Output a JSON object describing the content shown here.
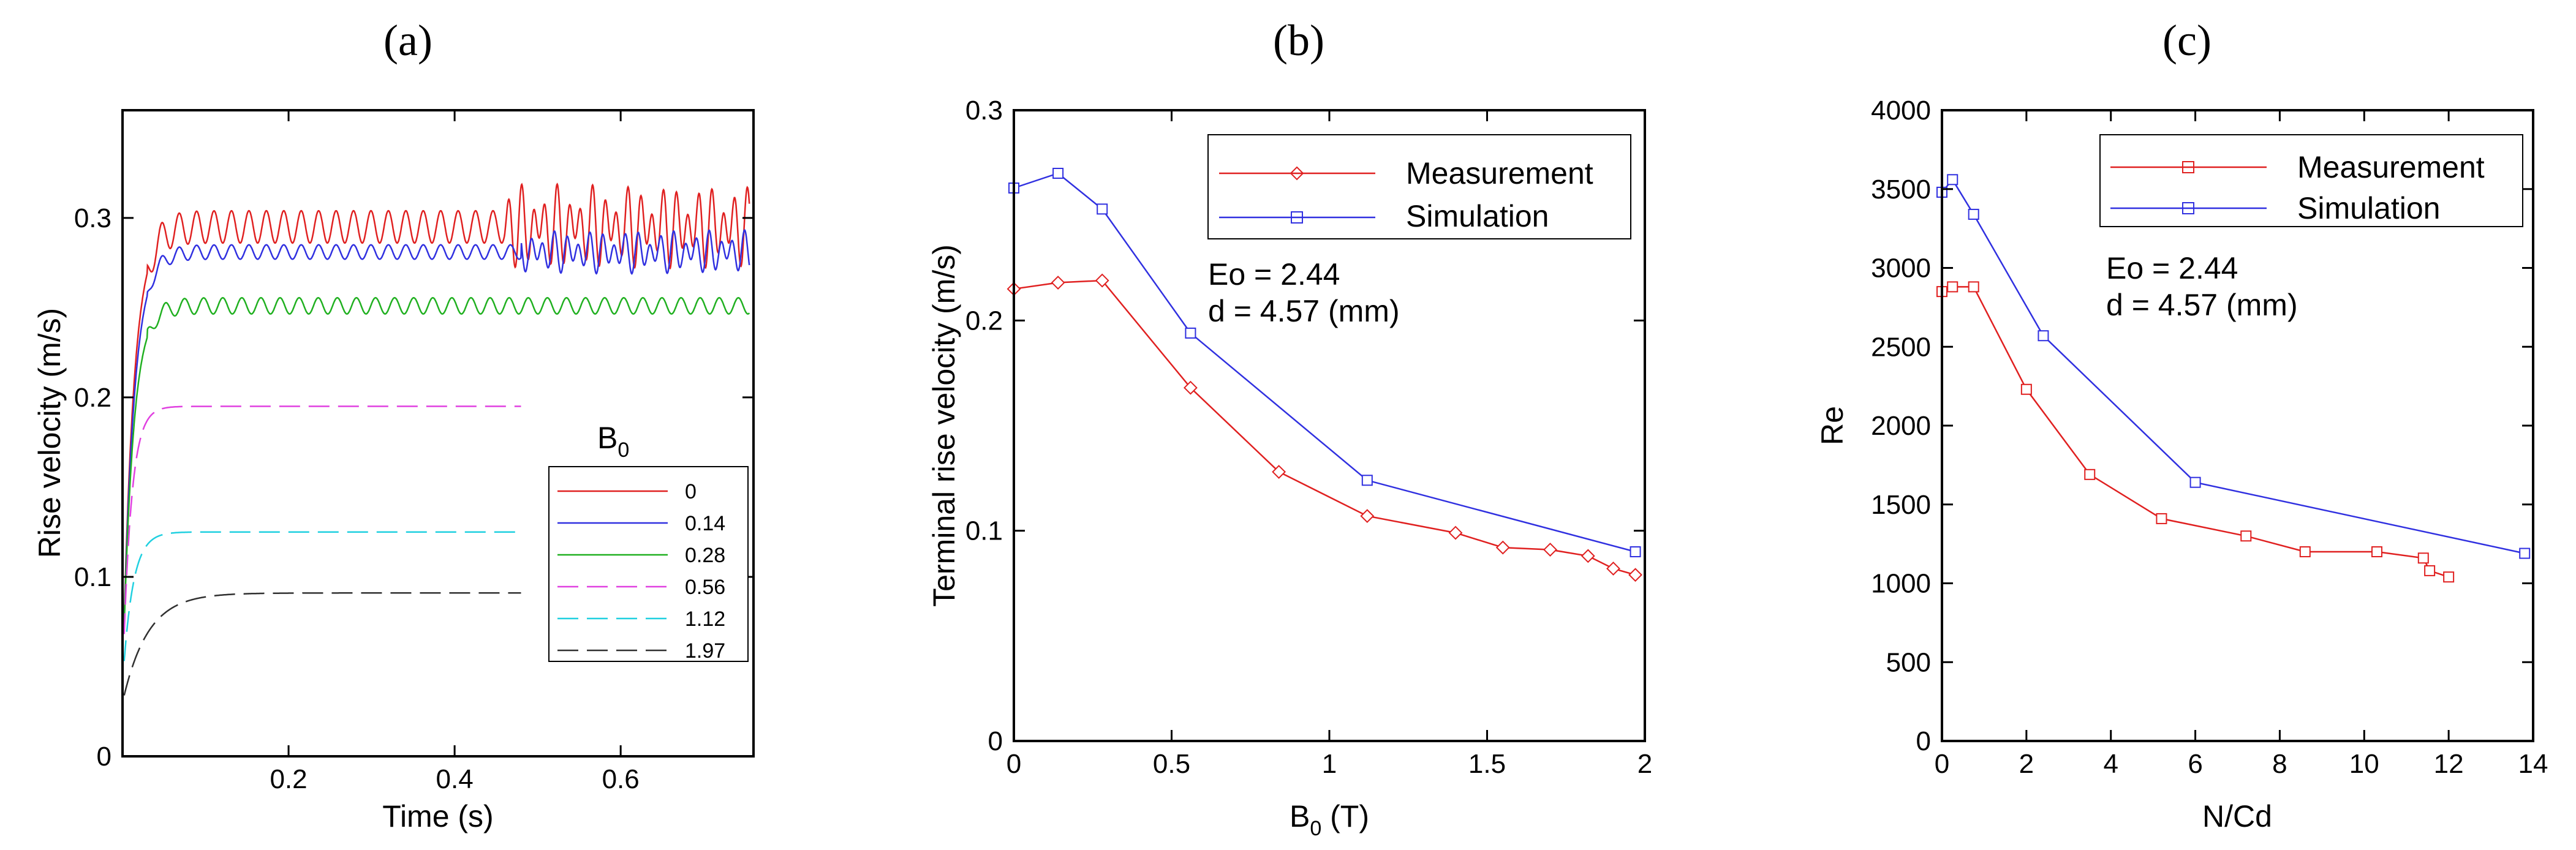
{
  "chart_data": [
    {
      "panel": "a",
      "panel_label": "(a)",
      "type": "line",
      "xlabel": "Time (s)",
      "ylabel": "Rise velocity (m/s)",
      "xlim": [
        0,
        0.76
      ],
      "ylim": [
        0,
        0.36
      ],
      "xticks": [
        0.2,
        0.4,
        0.6
      ],
      "xtick_labels": [
        "0.2",
        "0.4",
        "0.6"
      ],
      "yticks": [
        0,
        0.1,
        0.2,
        0.3
      ],
      "ytick_labels": [
        "0",
        "0.1",
        "0.2",
        "0.3"
      ],
      "legend_title": "B",
      "legend_title_sub": "0",
      "legend_position": "lower-right",
      "series": [
        {
          "name": "0",
          "color": "#e02020",
          "dash": "solid",
          "model": {
            "v0": 0.04,
            "vt": 0.295,
            "tau": 0.013,
            "t_end": 0.755,
            "osc_amp": 0.009,
            "osc_period": 0.021,
            "chaos_from": 0.46,
            "chaos_amp": 0.03
          }
        },
        {
          "name": "0.14",
          "color": "#3030e0",
          "dash": "solid",
          "model": {
            "v0": 0.04,
            "vt": 0.281,
            "tau": 0.013,
            "t_end": 0.755,
            "osc_amp": 0.004,
            "osc_period": 0.021,
            "chaos_from": 0.48,
            "chaos_amp": 0.016
          }
        },
        {
          "name": "0.28",
          "color": "#20b020",
          "dash": "solid",
          "model": {
            "v0": 0.04,
            "vt": 0.251,
            "tau": 0.012,
            "t_end": 0.755,
            "osc_amp": 0.0045,
            "osc_period": 0.023,
            "chaos_from": 0.0,
            "chaos_amp": 0.0
          }
        },
        {
          "name": "0.56",
          "color": "#e040e0",
          "dash": "dash",
          "model": {
            "v0": 0.04,
            "vt": 0.195,
            "tau": 0.01,
            "t_end": 0.48,
            "osc_amp": 0.0,
            "osc_period": 0.02,
            "chaos_from": 0.0,
            "chaos_amp": 0.0
          }
        },
        {
          "name": "1.12",
          "color": "#20d0e0",
          "dash": "dash",
          "model": {
            "v0": 0.04,
            "vt": 0.125,
            "tau": 0.012,
            "t_end": 0.48,
            "osc_amp": 0.0,
            "osc_period": 0.02,
            "chaos_from": 0.0,
            "chaos_amp": 0.0
          }
        },
        {
          "name": "1.97",
          "color": "#303030",
          "dash": "dash",
          "model": {
            "v0": 0.03,
            "vt": 0.091,
            "tau": 0.03,
            "t_end": 0.48,
            "osc_amp": 0.0,
            "osc_period": 0.02,
            "chaos_from": 0.0,
            "chaos_amp": 0.0
          }
        }
      ]
    },
    {
      "panel": "b",
      "panel_label": "(b)",
      "type": "line",
      "xlabel": "B",
      "xlabel_sub": "0",
      "xlabel_unit": " (T)",
      "ylabel": "Terminal rise velocity (m/s)",
      "xlim": [
        0,
        2
      ],
      "ylim": [
        0,
        0.3
      ],
      "xticks": [
        0,
        0.5,
        1,
        1.5,
        2
      ],
      "xtick_labels": [
        "0",
        "0.5",
        "1",
        "1.5",
        "2"
      ],
      "yticks": [
        0,
        0.1,
        0.2,
        0.3
      ],
      "ytick_labels": [
        "0",
        "0.1",
        "0.2",
        "0.3"
      ],
      "legend_position": "top-right",
      "annotations": [
        "Eo = 2.44",
        "d = 4.57 (mm)"
      ],
      "series": [
        {
          "name": "Measurement",
          "color": "#e02020",
          "marker": "diamond",
          "x": [
            0,
            0.14,
            0.28,
            0.56,
            0.84,
            1.12,
            1.4,
            1.55,
            1.7,
            1.82,
            1.9,
            1.97
          ],
          "y": [
            0.215,
            0.218,
            0.219,
            0.168,
            0.128,
            0.107,
            0.099,
            0.092,
            0.091,
            0.088,
            0.082,
            0.079
          ]
        },
        {
          "name": "Simulation",
          "color": "#3030e0",
          "marker": "square",
          "x": [
            0,
            0.14,
            0.28,
            0.56,
            1.12,
            1.97
          ],
          "y": [
            0.263,
            0.27,
            0.253,
            0.194,
            0.124,
            0.09
          ]
        }
      ]
    },
    {
      "panel": "c",
      "panel_label": "(c)",
      "type": "line",
      "xlabel": "N/Cd",
      "ylabel": "Re",
      "xlim": [
        0,
        14
      ],
      "ylim": [
        0,
        4000
      ],
      "xticks": [
        0,
        2,
        4,
        6,
        8,
        10,
        12,
        14
      ],
      "xtick_labels": [
        "0",
        "2",
        "4",
        "6",
        "8",
        "10",
        "12",
        "14"
      ],
      "yticks": [
        0,
        500,
        1000,
        1500,
        2000,
        2500,
        3000,
        3500,
        4000
      ],
      "ytick_labels": [
        "0",
        "500",
        "1000",
        "1500",
        "2000",
        "2500",
        "3000",
        "3500",
        "4000"
      ],
      "legend_position": "top-right",
      "annotations": [
        "Eo = 2.44",
        "d = 4.57 (mm)"
      ],
      "series": [
        {
          "name": "Measurement",
          "color": "#e02020",
          "marker": "square",
          "x": [
            0,
            0.25,
            0.75,
            2.0,
            3.5,
            5.2,
            7.2,
            8.6,
            10.3,
            11.4,
            11.55,
            12.0
          ],
          "y": [
            2850,
            2880,
            2880,
            2230,
            1690,
            1410,
            1300,
            1200,
            1200,
            1160,
            1080,
            1040
          ]
        },
        {
          "name": "Simulation",
          "color": "#3030e0",
          "marker": "square",
          "x": [
            0,
            0.25,
            0.75,
            2.4,
            6.0,
            13.8
          ],
          "y": [
            3480,
            3560,
            3340,
            2570,
            1640,
            1190
          ]
        }
      ]
    }
  ]
}
